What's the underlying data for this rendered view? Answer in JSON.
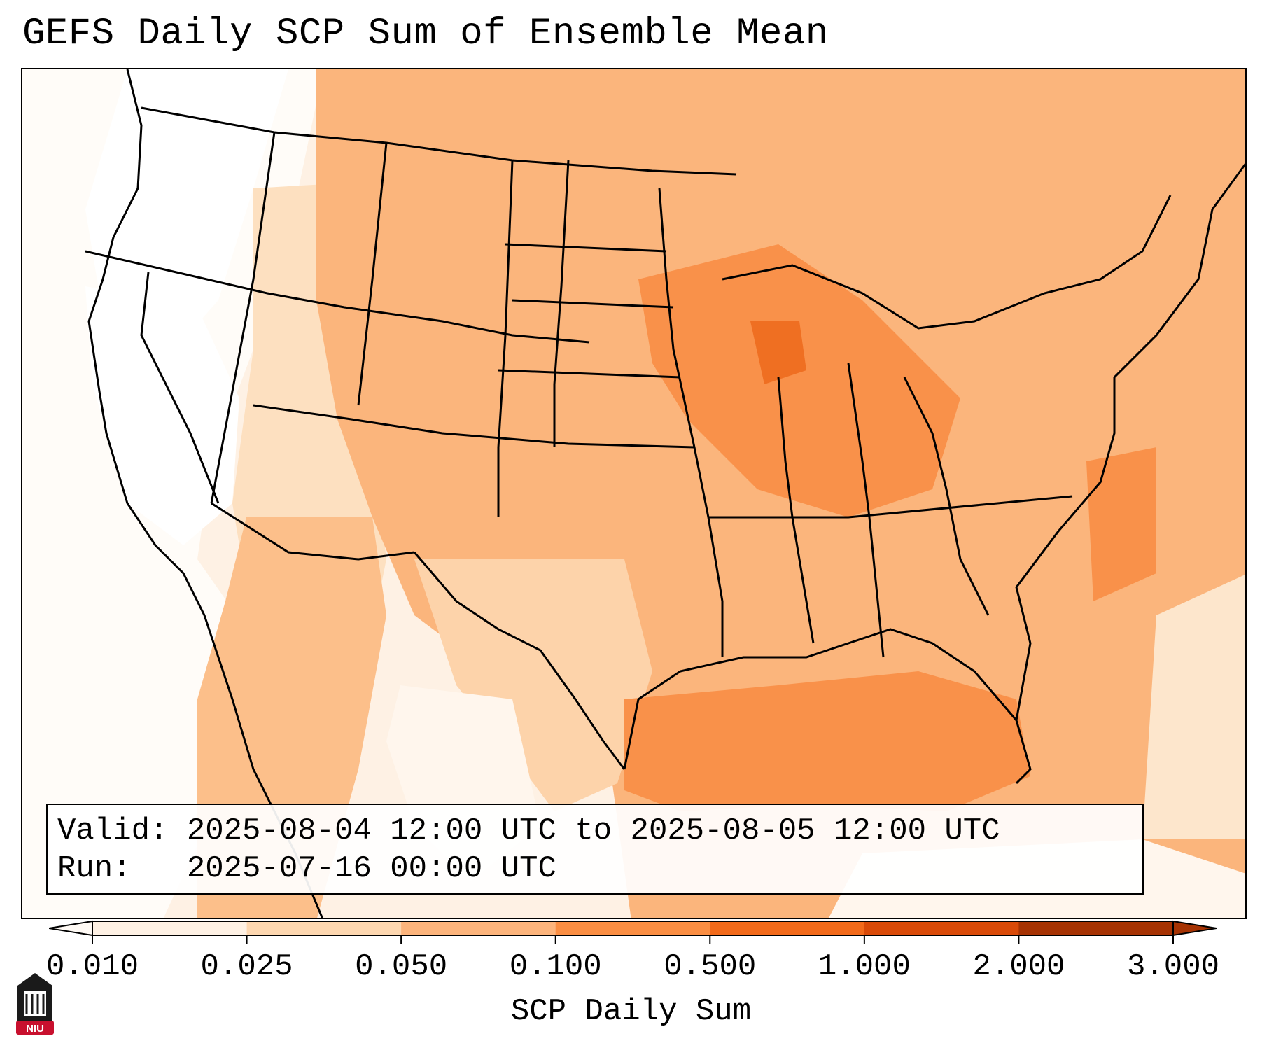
{
  "title": "GEFS Daily SCP Sum of Ensemble Mean",
  "info": {
    "valid_line": "Valid: 2025-08-04 12:00 UTC to 2025-08-05 12:00 UTC",
    "run_line": "Run:   2025-07-16 00:00 UTC"
  },
  "colorbar": {
    "label": "SCP Daily Sum",
    "ticks": [
      "0.010",
      "0.025",
      "0.050",
      "0.100",
      "0.500",
      "1.000",
      "2.000",
      "3.000"
    ],
    "colors": [
      "#fef1e4",
      "#fdd7b0",
      "#fcb47c",
      "#fa8e43",
      "#f26a1a",
      "#d94a08",
      "#a63303"
    ],
    "extend_low_color": "#fffaf5",
    "extend_high_color": "#a63303"
  },
  "logo": {
    "text": "NIU",
    "icon": "niu-logo-icon",
    "color": "#c8102e"
  }
}
